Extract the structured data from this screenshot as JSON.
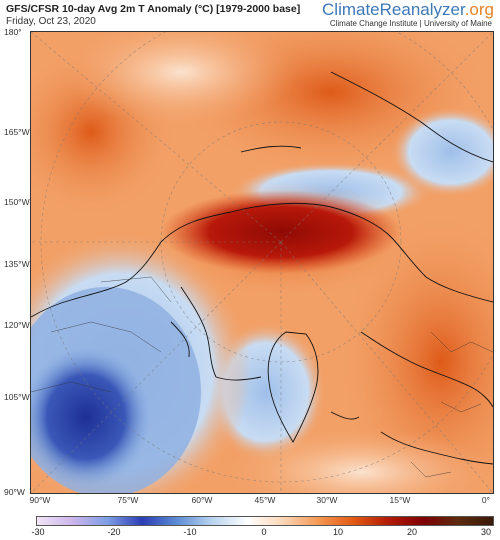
{
  "header": {
    "title": "GFS/CFSR 10-day Avg 2m T Anomaly (°C) [1979-2000 base]",
    "date": "Friday, Oct 23, 2020",
    "brand_part1": "Climate",
    "brand_part2": "Reanalyzer",
    "brand_part3": ".org",
    "credit": "Climate Change Institute | University of Maine"
  },
  "latitude_labels": [
    "180°",
    "165°W",
    "150°W",
    "135°W",
    "120°W",
    "105°W",
    "90°W"
  ],
  "longitude_labels": [
    "90°W",
    "75°W",
    "60°W",
    "45°W",
    "30°W",
    "15°W",
    "0°"
  ],
  "colorbar": {
    "ticks": [
      "-30",
      "-20",
      "-10",
      "0",
      "10",
      "20",
      "30"
    ],
    "colors": [
      "#f2e6f8",
      "#cdb5ea",
      "#7f9fe6",
      "#2b3db4",
      "#5d8ed6",
      "#b9d4ef",
      "#ffffff",
      "#fbd7b8",
      "#f49a55",
      "#e35b14",
      "#b41c06",
      "#800000",
      "#5c2a10",
      "#3a1a08"
    ]
  },
  "colors": {
    "warm_bg": "#f4a36b",
    "hot": "#b5150a",
    "cold": "#2a3f9e",
    "cool": "#7ea6dd",
    "coast": "#111111"
  }
}
